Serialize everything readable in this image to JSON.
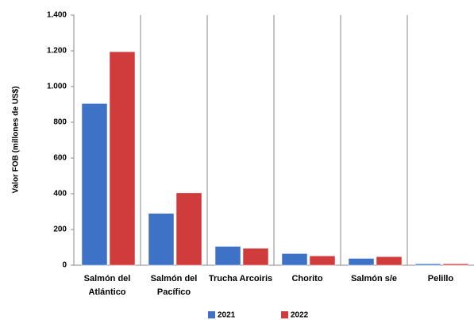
{
  "chart_data": {
    "type": "bar",
    "y_label": "Valor FOB (millones de US$)",
    "categories": [
      "Salmón del Atlántico",
      "Salmón del Pacífico",
      "Trucha Arcoiris",
      "Chorito",
      "Salmón s/e",
      "Pelillo"
    ],
    "series": [
      {
        "name": "2021",
        "color": "#3d72c6",
        "values": [
          905,
          290,
          105,
          65,
          38,
          8
        ]
      },
      {
        "name": "2022",
        "color": "#d03b3b",
        "values": [
          1195,
          405,
          95,
          52,
          48,
          8
        ]
      }
    ],
    "ylim": [
      0,
      1400
    ],
    "yticks": [
      0,
      200,
      400,
      600,
      800,
      {
        "value": 1000,
        "label": "1.000"
      },
      {
        "value": 1200,
        "label": "1.200"
      },
      {
        "value": 1400,
        "label": "1.400"
      }
    ],
    "legend": "bottom"
  }
}
